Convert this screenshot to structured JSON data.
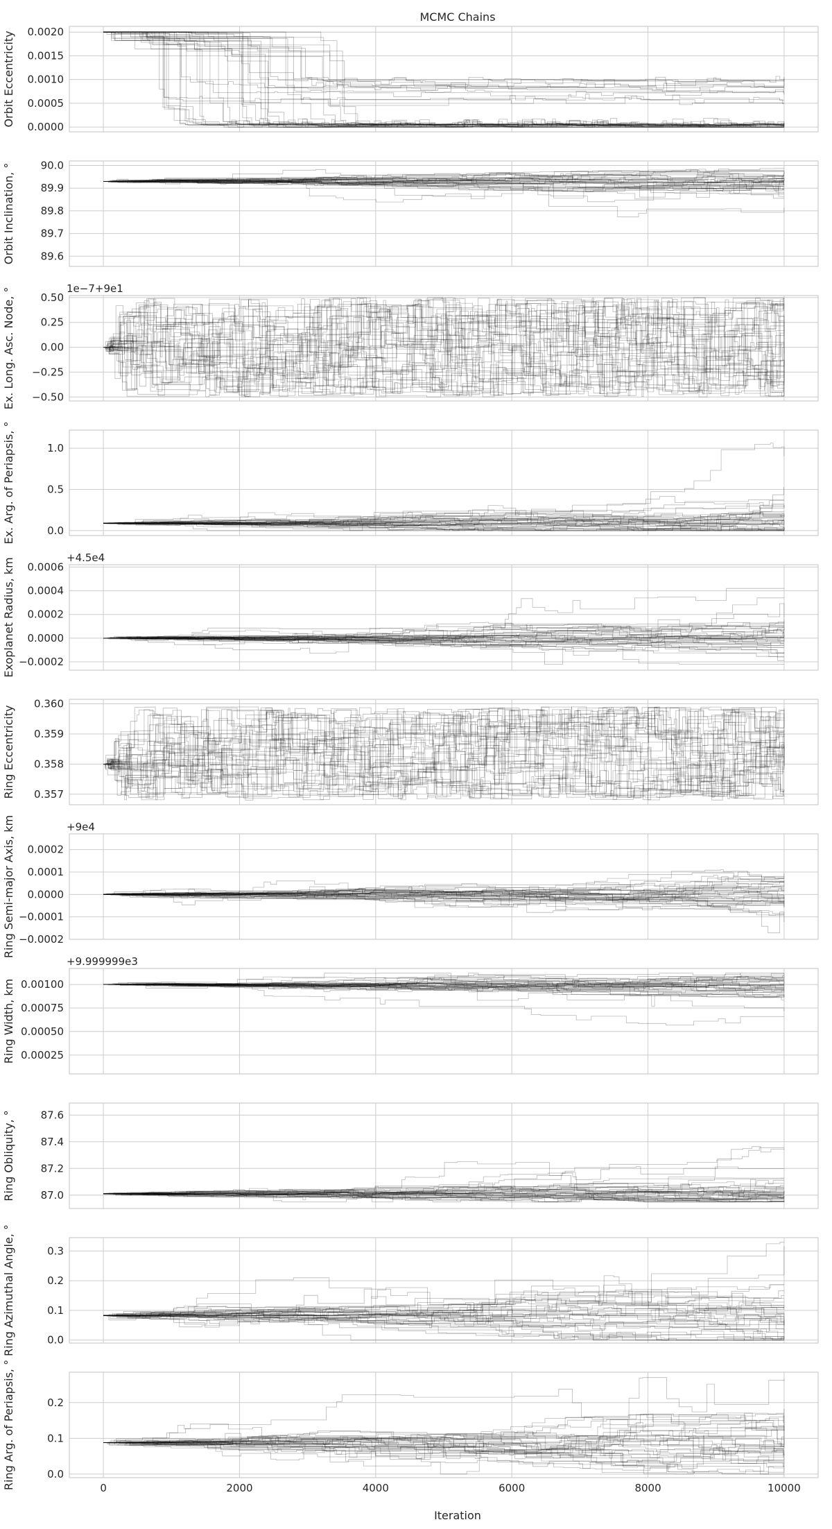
{
  "chart_data": {
    "type": "line",
    "title": "MCMC Chains",
    "xlabel": "Iteration",
    "x_ticks": [
      0,
      2000,
      4000,
      6000,
      8000,
      10000
    ],
    "xlim": [
      -500,
      10500
    ],
    "iterations": 10000,
    "n_walkers": 40,
    "grid": true,
    "line_color": "#000000",
    "grid_color": "#cccccc",
    "panels": [
      {
        "name": "orbit-eccentricity",
        "ylabel": "Orbit Eccentricity",
        "offset_text": "",
        "ylim": [
          -0.0001,
          0.00212
        ],
        "yticks": [
          0,
          0.0005,
          0.001,
          0.0015,
          0.002
        ],
        "ytick_labels": [
          "0.0000",
          "0.0005",
          "0.0010",
          "0.0015",
          "0.0020"
        ],
        "initial": 0.002,
        "mode": "collapse",
        "burn_start": 600,
        "burn_end": 3500,
        "final": 3e-05,
        "spread": 0.0004,
        "outlier_levels": [
          0.001,
          0.0008,
          0.0006,
          0.0009
        ]
      },
      {
        "name": "orbit-inclination",
        "ylabel": "Orbit Inclination, °",
        "offset_text": "",
        "ylim": [
          89.555,
          90.02
        ],
        "yticks": [
          89.6,
          89.7,
          89.8,
          89.9,
          90.0
        ],
        "ytick_labels": [
          "89.6",
          "89.7",
          "89.8",
          "89.9",
          "90.0"
        ],
        "initial": 89.93,
        "mode": "diffuse",
        "upper": 90.0,
        "lower": 89.57,
        "step": 0.02,
        "spread": 0.05,
        "bias": -0.3
      },
      {
        "name": "ex-long-asc-node",
        "ylabel": "Ex. Long. Asc. Node, °",
        "offset_text": "1e−7+9e1",
        "ylim": [
          -0.54,
          0.52
        ],
        "yticks": [
          -0.5,
          -0.25,
          0,
          0.25,
          0.5
        ],
        "ytick_labels": [
          "−0.50",
          "−0.25",
          "0.00",
          "0.25",
          "0.50"
        ],
        "initial": 0.0,
        "mode": "uniform",
        "upper": 0.5,
        "lower": -0.5,
        "step": 0.25,
        "spread": 0.5,
        "bias": 0
      },
      {
        "name": "ex-arg-periapsis",
        "ylabel": "Ex. Arg. of Periapsis, °",
        "offset_text": "",
        "ylim": [
          -0.06,
          1.22
        ],
        "yticks": [
          0,
          0.5,
          1.0
        ],
        "ytick_labels": [
          "0.0",
          "0.5",
          "1.0"
        ],
        "initial": 0.09,
        "mode": "diffuse",
        "upper": 1.18,
        "lower": 0.0,
        "step": 0.05,
        "spread": 0.25,
        "bias": 0.3
      },
      {
        "name": "exoplanet-radius",
        "ylabel": "Exoplanet Radius, km",
        "offset_text": "+4.5e4",
        "ylim": [
          -0.00027,
          0.00062
        ],
        "yticks": [
          -0.0002,
          0,
          0.0002,
          0.0004,
          0.0006
        ],
        "ytick_labels": [
          "−0.0002",
          "0.0000",
          "0.0002",
          "0.0004",
          "0.0006"
        ],
        "initial": 0.0,
        "mode": "diffuse",
        "upper": 0.0006,
        "lower": -0.00022,
        "step": 4e-05,
        "spread": 0.0002,
        "bias": 0.2
      },
      {
        "name": "ring-eccentricity",
        "ylabel": "Ring Eccentricity",
        "offset_text": "",
        "ylim": [
          0.35665,
          0.36015
        ],
        "yticks": [
          0.357,
          0.358,
          0.359,
          0.36
        ],
        "ytick_labels": [
          "0.357",
          "0.358",
          "0.359",
          "0.360"
        ],
        "initial": 0.358,
        "mode": "uniform",
        "upper": 0.3599,
        "lower": 0.3568,
        "step": 0.0007,
        "spread": 0.0015,
        "bias": 0
      },
      {
        "name": "ring-semi-major-axis",
        "ylabel": "Ring Semi-major Axis, km",
        "offset_text": "+9e4",
        "ylim": [
          -0.0002,
          0.00027
        ],
        "yticks": [
          -0.0002,
          -0.0001,
          0,
          0.0001,
          0.0002
        ],
        "ytick_labels": [
          "−0.0002",
          "−0.0001",
          "0.0000",
          "0.0001",
          "0.0002"
        ],
        "initial": 0.0,
        "mode": "diffuse",
        "upper": 0.00025,
        "lower": -0.00018,
        "step": 2e-05,
        "spread": 0.0001,
        "bias": 0.1
      },
      {
        "name": "ring-width",
        "ylabel": "Ring Width, km",
        "offset_text": "+9.999999e3",
        "ylim": [
          5e-05,
          0.00117
        ],
        "yticks": [
          0.00025,
          0.0005,
          0.00075,
          0.001
        ],
        "ytick_labels": [
          "0.00025",
          "0.00050",
          "0.00075",
          "0.00100"
        ],
        "initial": 0.001,
        "mode": "diffuse",
        "upper": 0.00112,
        "lower": 8e-05,
        "step": 4e-05,
        "spread": 0.00012,
        "bias": -0.2
      },
      {
        "name": "ring-obliquity",
        "ylabel": "Ring Obliquity, °",
        "offset_text": "",
        "ylim": [
          86.9,
          87.69
        ],
        "yticks": [
          87.0,
          87.2,
          87.4,
          87.6
        ],
        "ytick_labels": [
          "87.0",
          "87.2",
          "87.4",
          "87.6"
        ],
        "initial": 87.01,
        "mode": "diffuse",
        "upper": 87.65,
        "lower": 86.95,
        "step": 0.03,
        "spread": 0.12,
        "bias": 0.3
      },
      {
        "name": "ring-azimuthal-angle",
        "ylabel": "Ring Azimuthal Angle, °",
        "offset_text": "",
        "ylim": [
          -0.01,
          0.345
        ],
        "yticks": [
          0,
          0.1,
          0.2,
          0.3
        ],
        "ytick_labels": [
          "0.0",
          "0.1",
          "0.2",
          "0.3"
        ],
        "initial": 0.083,
        "mode": "diffuse",
        "upper": 0.33,
        "lower": 0.0,
        "step": 0.03,
        "spread": 0.09,
        "bias": 0
      },
      {
        "name": "ring-arg-periapsis",
        "ylabel": "Ring Arg. of Periapsis, °",
        "offset_text": "",
        "ylim": [
          -0.01,
          0.285
        ],
        "yticks": [
          0,
          0.1,
          0.2
        ],
        "ytick_labels": [
          "0.0",
          "0.1",
          "0.2"
        ],
        "initial": 0.088,
        "mode": "diffuse",
        "upper": 0.27,
        "lower": 0.0,
        "step": 0.025,
        "spread": 0.08,
        "bias": 0
      }
    ]
  }
}
